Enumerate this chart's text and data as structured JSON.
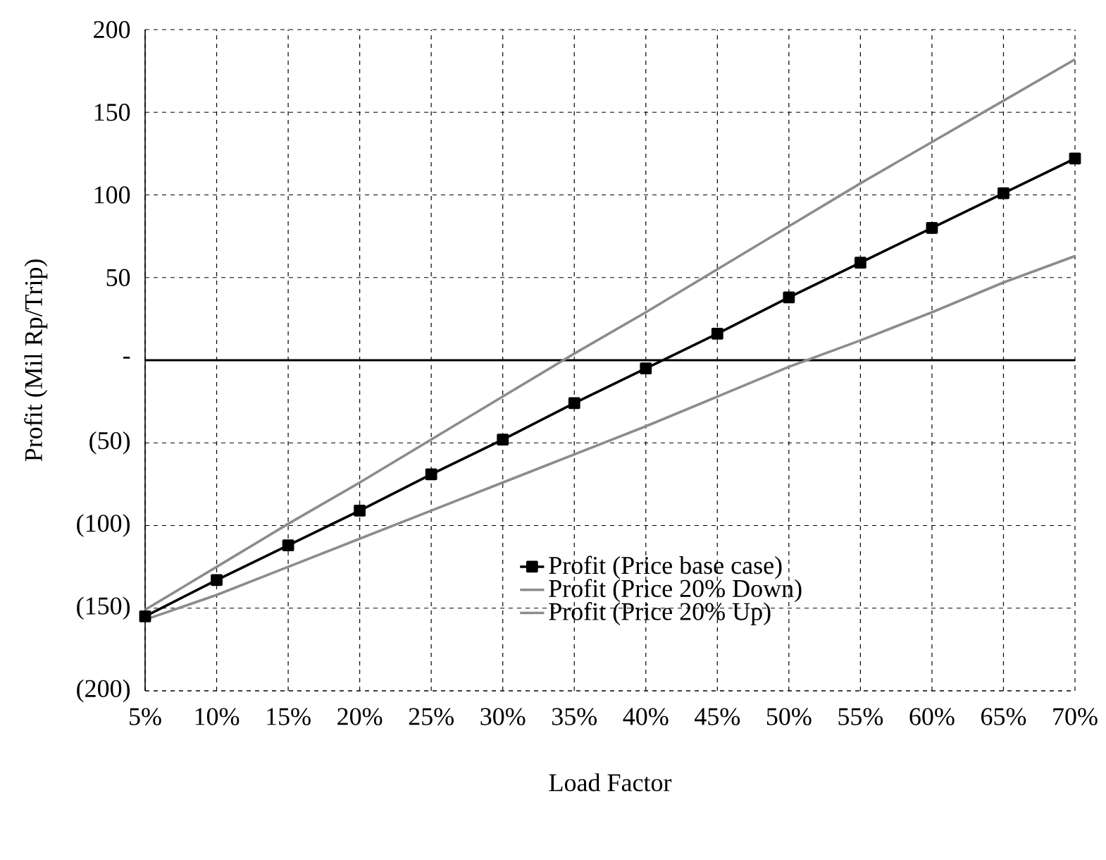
{
  "chart_data": {
    "type": "line",
    "xlabel": "Load Factor",
    "ylabel": "Profit  (Mil Rp/Trip)",
    "categories": [
      "5%",
      "10%",
      "15%",
      "20%",
      "25%",
      "30%",
      "35%",
      "40%",
      "45%",
      "50%",
      "55%",
      "60%",
      "65%",
      "70%"
    ],
    "series": [
      {
        "name": "Profit (Price base case)",
        "color": "#000000",
        "marker": "square",
        "values": [
          -155,
          -133,
          -112,
          -91,
          -69,
          -48,
          -26,
          -5,
          16,
          38,
          59,
          80,
          101,
          122
        ]
      },
      {
        "name": "Profit (Price 20% Down)",
        "color": "#8c8c8c",
        "marker": "none",
        "values": [
          -157,
          -142,
          -125,
          -108,
          -91,
          -74,
          -57,
          -40,
          -22,
          -4,
          12,
          29,
          47,
          63
        ]
      },
      {
        "name": "Profit (Price 20% Up)",
        "color": "#8c8c8c",
        "marker": "none",
        "values": [
          -151,
          -125,
          -99,
          -74,
          -48,
          -22,
          4,
          29,
          55,
          81,
          107,
          132,
          157,
          182
        ]
      }
    ],
    "ylim": [
      -200,
      200
    ],
    "yticks": [
      {
        "value": -200,
        "label": "(200)"
      },
      {
        "value": -150,
        "label": "(150)"
      },
      {
        "value": -100,
        "label": "(100)"
      },
      {
        "value": -50,
        "label": "(50)"
      },
      {
        "value": 0,
        "label": "-"
      },
      50,
      100,
      150,
      200
    ],
    "ref_lines": [
      {
        "axis": "y",
        "value": 0,
        "color": "#000000"
      }
    ],
    "grid": true,
    "legend": "bottom right",
    "line_style": "solid"
  }
}
